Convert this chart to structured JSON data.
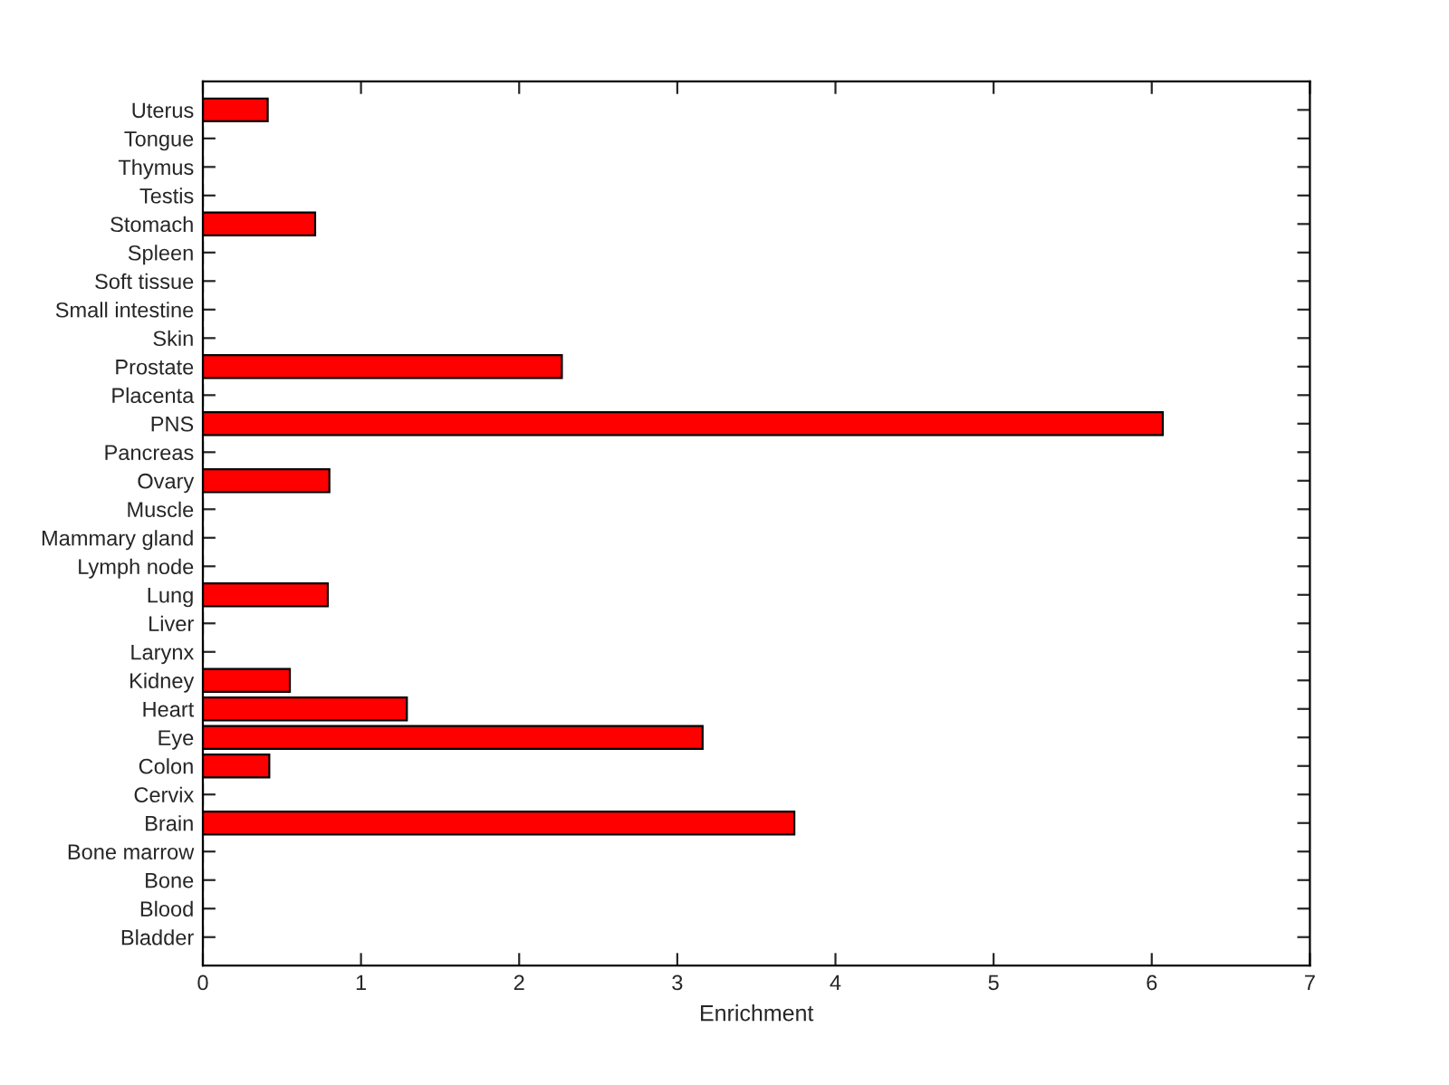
{
  "chart_data": {
    "type": "bar",
    "orientation": "horizontal",
    "xlabel": "Enrichment",
    "categories": [
      "Uterus",
      "Tongue",
      "Thymus",
      "Testis",
      "Stomach",
      "Spleen",
      "Soft tissue",
      "Small intestine",
      "Skin",
      "Prostate",
      "Placenta",
      "PNS",
      "Pancreas",
      "Ovary",
      "Muscle",
      "Mammary gland",
      "Lymph node",
      "Lung",
      "Liver",
      "Larynx",
      "Kidney",
      "Heart",
      "Eye",
      "Colon",
      "Cervix",
      "Brain",
      "Bone marrow",
      "Bone",
      "Blood",
      "Bladder"
    ],
    "values": [
      0.41,
      0,
      0,
      0,
      0.71,
      0,
      0,
      0,
      0,
      2.27,
      0,
      6.07,
      0,
      0.8,
      0,
      0,
      0,
      0.79,
      0,
      0,
      0.55,
      1.29,
      3.16,
      0.42,
      0,
      3.74,
      0,
      0,
      0,
      0
    ],
    "color": "#ff0000",
    "xlim": [
      0,
      7
    ],
    "xticks": [
      0,
      1,
      2,
      3,
      4,
      5,
      6,
      7
    ],
    "grid": false
  }
}
